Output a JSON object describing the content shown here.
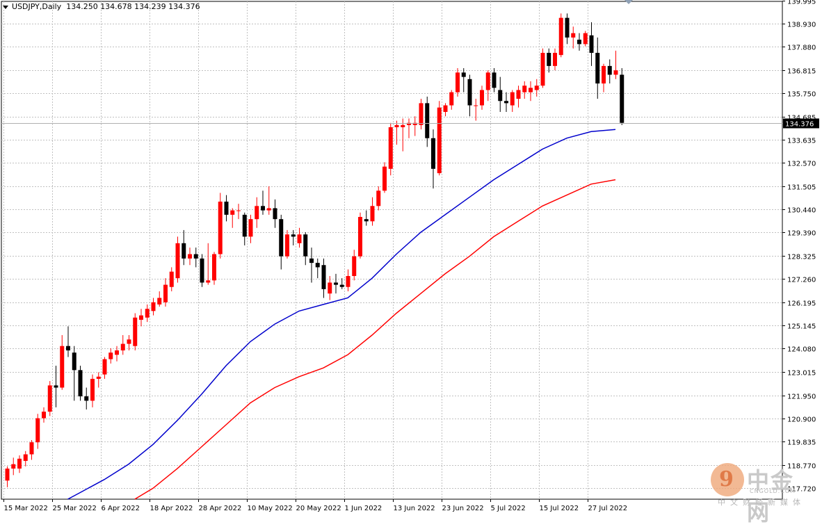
{
  "header": {
    "symbol": "USDJPY,Daily",
    "ohlc": "134.250 134.678 134.239 134.376"
  },
  "price_tag": "134.376",
  "watermark": {
    "logo_glyph": "9",
    "brand_cn": "中金网",
    "brand_en": "CNGOLD.COM",
    "subtitle": "中文财经新媒体"
  },
  "colors": {
    "bull": "#ff0000",
    "bear": "#000000",
    "ma_fast": "#0000cc",
    "ma_slow": "#ff0000",
    "grid": "#c0c0c0",
    "axis": "#000000",
    "price_line": "#b0b0b0"
  },
  "chart_data": {
    "type": "candlestick",
    "symbol": "USDJPY",
    "timeframe": "Daily",
    "grid": true,
    "y_axis_position": "right",
    "ylim": [
      117.2,
      140.5
    ],
    "y_ticks": [
      "139.995",
      "138.930",
      "137.880",
      "136.815",
      "135.750",
      "134.685",
      "133.635",
      "132.570",
      "131.505",
      "130.440",
      "129.390",
      "128.325",
      "127.260",
      "126.195",
      "125.145",
      "124.080",
      "123.015",
      "121.950",
      "120.900",
      "119.835",
      "118.770",
      "117.720"
    ],
    "x_ticks": [
      {
        "label": "15 Mar 2022",
        "bar": 0
      },
      {
        "label": "25 Mar 2022",
        "bar": 8
      },
      {
        "label": "6 Apr 2022",
        "bar": 16
      },
      {
        "label": "18 Apr 2022",
        "bar": 24
      },
      {
        "label": "28 Apr 2022",
        "bar": 32
      },
      {
        "label": "10 May 2022",
        "bar": 40
      },
      {
        "label": "20 May 2022",
        "bar": 48
      },
      {
        "label": "1 Jun 2022",
        "bar": 56
      },
      {
        "label": "13 Jun 2022",
        "bar": 64
      },
      {
        "label": "23 Jun 2022",
        "bar": 72
      },
      {
        "label": "5 Jul 2022",
        "bar": 80
      },
      {
        "label": "15 Jul 2022",
        "bar": 88
      },
      {
        "label": "27 Jul 2022",
        "bar": 96
      }
    ],
    "last_price": 134.376,
    "ohlc": [
      [
        118.05,
        118.7,
        117.75,
        118.6
      ],
      [
        118.6,
        119.1,
        118.3,
        118.8
      ],
      [
        118.6,
        119.2,
        118.4,
        119.05
      ],
      [
        118.95,
        119.4,
        118.7,
        119.25
      ],
      [
        119.25,
        119.9,
        119.0,
        119.8
      ],
      [
        119.8,
        121.1,
        119.5,
        120.9
      ],
      [
        120.9,
        121.4,
        120.7,
        121.2
      ],
      [
        121.2,
        122.6,
        121.0,
        122.4
      ],
      [
        122.4,
        123.3,
        121.4,
        122.3
      ],
      [
        122.3,
        124.7,
        122.2,
        124.2
      ],
      [
        124.2,
        125.1,
        123.7,
        124.0
      ],
      [
        123.9,
        124.2,
        121.7,
        123.1
      ],
      [
        123.1,
        123.3,
        121.7,
        121.9
      ],
      [
        121.9,
        122.3,
        121.3,
        121.7
      ],
      [
        121.7,
        122.9,
        121.4,
        122.7
      ],
      [
        122.7,
        123.0,
        122.3,
        122.8
      ],
      [
        122.9,
        123.7,
        122.7,
        123.6
      ],
      [
        123.6,
        124.1,
        123.4,
        123.9
      ],
      [
        123.8,
        124.2,
        123.5,
        124.0
      ],
      [
        124.0,
        124.7,
        123.8,
        124.3
      ],
      [
        124.3,
        124.7,
        124.0,
        124.5
      ],
      [
        124.2,
        125.7,
        124.0,
        125.5
      ],
      [
        125.4,
        125.9,
        125.1,
        125.6
      ],
      [
        125.5,
        126.1,
        125.3,
        125.9
      ],
      [
        125.8,
        126.4,
        125.6,
        126.2
      ],
      [
        126.1,
        126.7,
        126.0,
        126.4
      ],
      [
        126.2,
        127.3,
        126.0,
        127.0
      ],
      [
        126.9,
        127.8,
        126.7,
        127.6
      ],
      [
        127.3,
        129.2,
        127.1,
        128.9
      ],
      [
        128.9,
        129.5,
        127.9,
        128.2
      ],
      [
        128.2,
        128.7,
        127.9,
        128.4
      ],
      [
        128.4,
        128.7,
        127.8,
        128.2
      ],
      [
        128.2,
        128.4,
        126.9,
        127.1
      ],
      [
        127.1,
        128.9,
        127.0,
        127.2
      ],
      [
        127.2,
        128.5,
        127.0,
        128.4
      ],
      [
        128.4,
        131.2,
        128.2,
        130.8
      ],
      [
        130.8,
        131.1,
        129.9,
        130.2
      ],
      [
        130.2,
        130.5,
        129.6,
        130.4
      ],
      [
        130.4,
        130.7,
        130.0,
        130.4
      ],
      [
        130.2,
        130.3,
        128.8,
        129.2
      ],
      [
        129.2,
        130.2,
        128.9,
        130.0
      ],
      [
        130.0,
        131.0,
        129.6,
        130.6
      ],
      [
        130.6,
        131.3,
        130.2,
        130.4
      ],
      [
        130.4,
        131.5,
        130.2,
        130.5
      ],
      [
        130.5,
        130.9,
        129.6,
        130.0
      ],
      [
        130.0,
        130.2,
        127.7,
        128.3
      ],
      [
        128.3,
        129.5,
        128.2,
        129.3
      ],
      [
        129.3,
        129.5,
        128.8,
        129.2
      ],
      [
        128.9,
        129.6,
        128.7,
        129.3
      ],
      [
        129.3,
        129.4,
        127.9,
        128.3
      ],
      [
        128.2,
        128.7,
        127.1,
        128.0
      ],
      [
        128.0,
        128.2,
        127.3,
        127.8
      ],
      [
        127.9,
        128.2,
        126.4,
        126.8
      ],
      [
        126.6,
        127.4,
        126.3,
        127.1
      ],
      [
        127.1,
        127.5,
        126.6,
        127.0
      ],
      [
        127.0,
        127.3,
        126.8,
        126.9
      ],
      [
        126.9,
        127.7,
        126.7,
        127.4
      ],
      [
        127.4,
        128.6,
        127.2,
        128.3
      ],
      [
        128.3,
        130.3,
        128.2,
        130.1
      ],
      [
        130.0,
        130.4,
        129.7,
        129.9
      ],
      [
        129.9,
        131.0,
        129.7,
        130.6
      ],
      [
        130.6,
        131.5,
        130.4,
        131.3
      ],
      [
        131.3,
        132.6,
        131.2,
        132.4
      ],
      [
        132.3,
        134.4,
        132.0,
        134.2
      ],
      [
        134.2,
        134.5,
        133.4,
        134.3
      ],
      [
        134.2,
        134.6,
        133.1,
        134.3
      ],
      [
        134.3,
        134.6,
        133.7,
        134.4
      ],
      [
        134.3,
        134.7,
        133.8,
        134.4
      ],
      [
        134.3,
        135.5,
        134.1,
        135.3
      ],
      [
        135.3,
        135.6,
        133.3,
        133.7
      ],
      [
        133.7,
        134.1,
        131.4,
        132.3
      ],
      [
        132.1,
        135.4,
        132.0,
        135.1
      ],
      [
        134.9,
        135.3,
        134.7,
        135.2
      ],
      [
        135.2,
        135.9,
        135.0,
        135.8
      ],
      [
        135.8,
        136.9,
        135.6,
        136.7
      ],
      [
        136.7,
        136.9,
        135.8,
        136.5
      ],
      [
        136.4,
        136.6,
        134.7,
        135.2
      ],
      [
        135.2,
        135.5,
        134.5,
        135.2
      ],
      [
        135.2,
        136.1,
        135.0,
        135.9
      ],
      [
        135.9,
        136.8,
        135.4,
        136.7
      ],
      [
        136.7,
        136.9,
        135.8,
        136.0
      ],
      [
        135.9,
        136.5,
        134.9,
        135.4
      ],
      [
        135.4,
        135.8,
        134.9,
        135.3
      ],
      [
        135.2,
        135.9,
        134.9,
        135.8
      ],
      [
        135.5,
        136.1,
        135.1,
        135.9
      ],
      [
        135.8,
        136.3,
        135.5,
        136.1
      ],
      [
        135.8,
        136.3,
        135.4,
        136.0
      ],
      [
        135.9,
        136.4,
        135.6,
        136.1
      ],
      [
        136.1,
        137.8,
        136.0,
        137.6
      ],
      [
        137.6,
        137.8,
        136.7,
        137.0
      ],
      [
        137.0,
        137.8,
        136.8,
        137.6
      ],
      [
        137.5,
        139.4,
        137.4,
        139.2
      ],
      [
        139.2,
        139.4,
        138.0,
        138.3
      ],
      [
        138.3,
        138.8,
        137.8,
        138.5
      ],
      [
        138.2,
        138.5,
        137.7,
        138.0
      ],
      [
        138.0,
        138.6,
        137.9,
        138.5
      ],
      [
        138.4,
        139.0,
        137.0,
        137.6
      ],
      [
        137.6,
        138.3,
        135.5,
        136.2
      ],
      [
        136.2,
        137.1,
        135.8,
        137.0
      ],
      [
        137.0,
        137.3,
        136.2,
        136.6
      ],
      [
        136.6,
        137.7,
        136.4,
        136.8
      ],
      [
        136.6,
        136.9,
        134.3,
        134.4
      ]
    ],
    "series": [
      {
        "name": "",
        "color": "#0000cc",
        "points": [
          [
            10,
            117.2
          ],
          [
            12,
            117.5
          ],
          [
            16,
            118.1
          ],
          [
            20,
            118.8
          ],
          [
            24,
            119.7
          ],
          [
            28,
            120.8
          ],
          [
            32,
            122.0
          ],
          [
            36,
            123.3
          ],
          [
            40,
            124.4
          ],
          [
            44,
            125.2
          ],
          [
            48,
            125.8
          ],
          [
            52,
            126.1
          ],
          [
            56,
            126.4
          ],
          [
            60,
            127.3
          ],
          [
            64,
            128.4
          ],
          [
            68,
            129.4
          ],
          [
            72,
            130.2
          ],
          [
            76,
            131.0
          ],
          [
            80,
            131.8
          ],
          [
            84,
            132.5
          ],
          [
            88,
            133.2
          ],
          [
            92,
            133.7
          ],
          [
            96,
            134.0
          ],
          [
            100,
            134.1
          ]
        ]
      },
      {
        "name": "",
        "color": "#ff0000",
        "points": [
          [
            21,
            117.2
          ],
          [
            24,
            117.7
          ],
          [
            28,
            118.6
          ],
          [
            32,
            119.6
          ],
          [
            36,
            120.6
          ],
          [
            40,
            121.6
          ],
          [
            44,
            122.3
          ],
          [
            48,
            122.8
          ],
          [
            52,
            123.2
          ],
          [
            56,
            123.8
          ],
          [
            60,
            124.7
          ],
          [
            64,
            125.7
          ],
          [
            68,
            126.6
          ],
          [
            72,
            127.5
          ],
          [
            76,
            128.3
          ],
          [
            80,
            129.2
          ],
          [
            84,
            129.9
          ],
          [
            88,
            130.6
          ],
          [
            92,
            131.1
          ],
          [
            96,
            131.6
          ],
          [
            100,
            131.8
          ]
        ]
      }
    ]
  }
}
